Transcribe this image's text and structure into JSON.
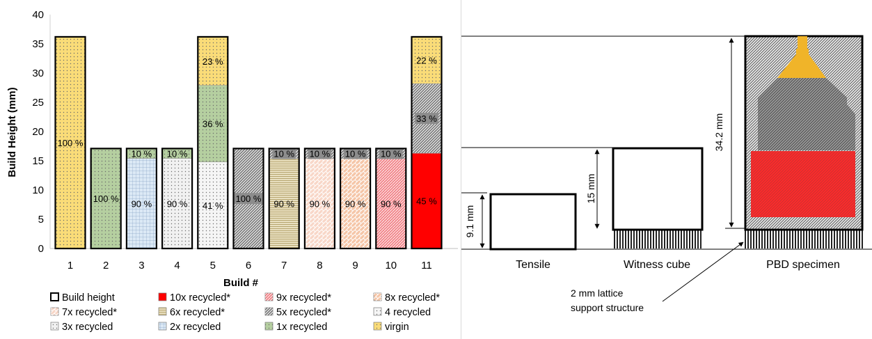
{
  "chart_data": {
    "type": "bar",
    "stacked": true,
    "ylabel": "Build Height (mm)",
    "xlabel": "Build #",
    "ylim": [
      0,
      40
    ],
    "yticks": [
      0,
      5,
      10,
      15,
      20,
      25,
      30,
      35,
      40
    ],
    "categories": [
      "1",
      "2",
      "3",
      "4",
      "5",
      "6",
      "7",
      "8",
      "9",
      "10",
      "11"
    ],
    "bars": [
      {
        "build": "1",
        "segments": [
          {
            "series": "virgin",
            "from": 0,
            "to": 36.2,
            "label": "100 %"
          }
        ]
      },
      {
        "build": "2",
        "segments": [
          {
            "series": "1x recycled",
            "from": 0,
            "to": 17.1,
            "label": "100 %"
          }
        ]
      },
      {
        "build": "3",
        "segments": [
          {
            "series": "2x recycled",
            "from": 0,
            "to": 15.4,
            "label": "90 %"
          },
          {
            "series": "1x recycled",
            "from": 15.4,
            "to": 17.1,
            "label": "10 %"
          }
        ]
      },
      {
        "build": "4",
        "segments": [
          {
            "series": "3x recycled",
            "from": 0,
            "to": 15.4,
            "label": "90 %"
          },
          {
            "series": "1x recycled",
            "from": 15.4,
            "to": 17.1,
            "label": "10 %"
          }
        ]
      },
      {
        "build": "5",
        "segments": [
          {
            "series": "4 recycled",
            "from": 0,
            "to": 14.8,
            "label": "41 %"
          },
          {
            "series": "1x recycled",
            "from": 14.8,
            "to": 27.9,
            "label": "36 %"
          },
          {
            "series": "virgin",
            "from": 27.9,
            "to": 36.2,
            "label": "23 %"
          }
        ]
      },
      {
        "build": "6",
        "segments": [
          {
            "series": "5x recycled*",
            "from": 0,
            "to": 17.1,
            "label": "100 %"
          }
        ]
      },
      {
        "build": "7",
        "segments": [
          {
            "series": "6x recycled*",
            "from": 0,
            "to": 15.4,
            "label": "90 %"
          },
          {
            "series": "5x recycled*",
            "from": 15.4,
            "to": 17.1,
            "label": "10 %"
          }
        ]
      },
      {
        "build": "8",
        "segments": [
          {
            "series": "7x recycled*",
            "from": 0,
            "to": 15.4,
            "label": "90 %"
          },
          {
            "series": "5x recycled*",
            "from": 15.4,
            "to": 17.1,
            "label": "10 %"
          }
        ]
      },
      {
        "build": "9",
        "segments": [
          {
            "series": "8x recycled*",
            "from": 0,
            "to": 15.4,
            "label": "90 %"
          },
          {
            "series": "5x recycled*",
            "from": 15.4,
            "to": 17.1,
            "label": "10 %"
          }
        ]
      },
      {
        "build": "10",
        "segments": [
          {
            "series": "9x recycled*",
            "from": 0,
            "to": 15.4,
            "label": "90 %"
          },
          {
            "series": "5x recycled*",
            "from": 15.4,
            "to": 17.1,
            "label": "10 %"
          }
        ]
      },
      {
        "build": "11",
        "segments": [
          {
            "series": "10x recycled*",
            "from": 0,
            "to": 16.3,
            "label": "45 %"
          },
          {
            "series": "5x recycled*",
            "from": 16.3,
            "to": 28.2,
            "label": "33 %"
          },
          {
            "series": "virgin",
            "from": 28.2,
            "to": 36.2,
            "label": "22 %"
          }
        ]
      }
    ],
    "build_height": [
      36.2,
      17.1,
      17.1,
      17.1,
      36.2,
      17.1,
      17.1,
      17.1,
      17.1,
      17.1,
      36.2
    ],
    "legend": [
      {
        "label": "Build height",
        "fill": "#ffffff",
        "pattern": "none",
        "outline": true
      },
      {
        "label": "10x recycled*",
        "fill": "#ff0000",
        "pattern": "none"
      },
      {
        "label": "9x recycled*",
        "fill": "#f2858a",
        "pattern": "diag"
      },
      {
        "label": "8x recycled*",
        "fill": "#f5c6a8",
        "pattern": "weave"
      },
      {
        "label": "7x recycled*",
        "fill": "#f8d7c8",
        "pattern": "weave"
      },
      {
        "label": "6x recycled*",
        "fill": "#e9e0c1",
        "pattern": "hlines"
      },
      {
        "label": "5x recycled*",
        "fill": "#7a7a7a",
        "pattern": "diagdense"
      },
      {
        "label": "4 recycled",
        "fill": "#f5f5f5",
        "pattern": "dots"
      },
      {
        "label": "3x recycled",
        "fill": "#f1f1f1",
        "pattern": "dots"
      },
      {
        "label": "2x recycled",
        "fill": "#dce9f5",
        "pattern": "grid"
      },
      {
        "label": "1x recycled",
        "fill": "#b5cfa0",
        "pattern": "dots"
      },
      {
        "label": "virgin",
        "fill": "#fadc78",
        "pattern": "dots"
      }
    ],
    "legend_placement": "bottom",
    "grid": false
  },
  "diagram": {
    "specimens": [
      "Tensile",
      "Witness cube",
      "PBD specimen"
    ],
    "dims": [
      "9.1 mm",
      "15 mm",
      "34.2 mm"
    ],
    "note_line1": "2 mm lattice",
    "note_line2": "support structure",
    "colors": {
      "red": "#ff2a2a",
      "gold": "#f0b429",
      "gray": "#8a8a8a",
      "hatch": "#333333"
    }
  }
}
